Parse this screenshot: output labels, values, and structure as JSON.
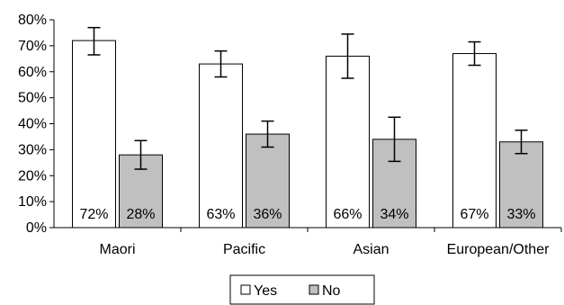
{
  "chart_data": {
    "type": "bar",
    "categories": [
      "Maori",
      "Pacific",
      "Asian",
      "European/Other"
    ],
    "series": [
      {
        "name": "Yes",
        "values": [
          72,
          63,
          66,
          67
        ],
        "labels": [
          "72%",
          "63%",
          "66%",
          "67%"
        ],
        "error_low": [
          66.5,
          58,
          57.5,
          62.5
        ],
        "error_high": [
          77,
          68,
          74.5,
          71.5
        ],
        "color": "#ffffff"
      },
      {
        "name": "No",
        "values": [
          28,
          36,
          34,
          33
        ],
        "labels": [
          "28%",
          "36%",
          "34%",
          "33%"
        ],
        "error_low": [
          22.5,
          31,
          25.5,
          28.5
        ],
        "error_high": [
          33.5,
          41,
          42.5,
          37.5
        ],
        "color": "#c0c0c0"
      }
    ],
    "ylim": [
      0,
      80
    ],
    "yticks": [
      "0%",
      "10%",
      "20%",
      "30%",
      "40%",
      "50%",
      "60%",
      "70%",
      "80%"
    ],
    "ytick_values": [
      0,
      10,
      20,
      30,
      40,
      50,
      60,
      70,
      80
    ],
    "grid": false,
    "legend_position": "bottom-center",
    "title": "",
    "xlabel": "",
    "ylabel": ""
  }
}
